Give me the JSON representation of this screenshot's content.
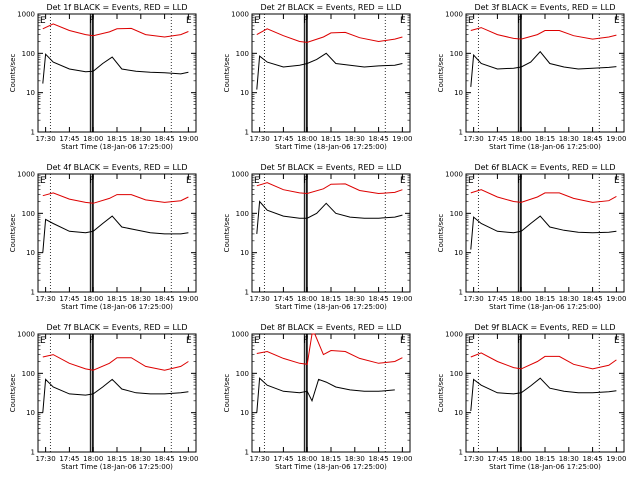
{
  "figure": {
    "xlabel": "Start Time (18-Jan-06 17:25:00)",
    "ylabel": "Counts/sec",
    "x_tick_labels": [
      "17:30",
      "17:45",
      "18:00",
      "18:15",
      "18:30",
      "18:45",
      "19:00"
    ],
    "y_tick_labels": [
      "1",
      "10",
      "100",
      "1000"
    ],
    "markers": [
      "E",
      "F",
      "E"
    ]
  },
  "colors": {
    "events": "#000000",
    "lld": "#dd0000",
    "frame": "#000000"
  },
  "chart_data": [
    {
      "type": "line",
      "title": "Det 1f BLACK = Events, RED = LLD",
      "xlim": [
        17.42,
        19.08
      ],
      "ylim": [
        1,
        1000
      ],
      "log_y": true,
      "series": [
        {
          "name": "LLD",
          "x": [
            17.47,
            17.58,
            17.75,
            17.92,
            18.0,
            18.17,
            18.25,
            18.4,
            18.55,
            18.75,
            18.92,
            19.0
          ],
          "values": [
            420,
            560,
            380,
            300,
            280,
            350,
            420,
            430,
            300,
            260,
            300,
            360
          ]
        },
        {
          "name": "Events",
          "x": [
            17.47,
            17.5,
            17.58,
            17.75,
            17.92,
            18.0,
            18.1,
            18.2,
            18.3,
            18.45,
            18.6,
            18.75,
            18.92,
            19.0
          ],
          "values": [
            17,
            95,
            60,
            40,
            34,
            35,
            55,
            80,
            40,
            35,
            33,
            32,
            30,
            33
          ]
        }
      ]
    },
    {
      "type": "line",
      "title": "Det 2f BLACK = Events, RED = LLD",
      "xlim": [
        17.42,
        19.08
      ],
      "ylim": [
        1,
        1000
      ],
      "log_y": true,
      "series": [
        {
          "name": "LLD",
          "x": [
            17.47,
            17.58,
            17.75,
            17.92,
            18.0,
            18.17,
            18.25,
            18.4,
            18.55,
            18.75,
            18.92,
            19.0
          ],
          "values": [
            300,
            420,
            280,
            200,
            190,
            260,
            330,
            340,
            250,
            200,
            230,
            260
          ]
        },
        {
          "name": "Events",
          "x": [
            17.47,
            17.5,
            17.58,
            17.75,
            17.92,
            18.0,
            18.1,
            18.2,
            18.3,
            18.45,
            18.6,
            18.75,
            18.92,
            19.0
          ],
          "values": [
            12,
            85,
            60,
            45,
            50,
            55,
            70,
            100,
            55,
            50,
            45,
            48,
            50,
            55
          ]
        }
      ]
    },
    {
      "type": "line",
      "title": "Det 3f BLACK = Events, RED = LLD",
      "xlim": [
        17.42,
        19.08
      ],
      "ylim": [
        1,
        1000
      ],
      "log_y": true,
      "series": [
        {
          "name": "LLD",
          "x": [
            17.47,
            17.58,
            17.75,
            17.92,
            18.0,
            18.17,
            18.25,
            18.4,
            18.55,
            18.75,
            18.92,
            19.0
          ],
          "values": [
            380,
            450,
            300,
            240,
            230,
            300,
            380,
            380,
            280,
            230,
            260,
            290
          ]
        },
        {
          "name": "Events",
          "x": [
            17.47,
            17.5,
            17.58,
            17.75,
            17.92,
            18.0,
            18.1,
            18.2,
            18.3,
            18.45,
            18.6,
            18.75,
            18.92,
            19.0
          ],
          "values": [
            14,
            90,
            55,
            40,
            42,
            45,
            60,
            110,
            55,
            45,
            40,
            42,
            44,
            46
          ]
        }
      ]
    },
    {
      "type": "line",
      "title": "Det 4f BLACK = Events, RED = LLD",
      "xlim": [
        17.42,
        19.08
      ],
      "ylim": [
        1,
        1000
      ],
      "log_y": true,
      "series": [
        {
          "name": "LLD",
          "x": [
            17.47,
            17.58,
            17.75,
            17.92,
            18.0,
            18.17,
            18.25,
            18.4,
            18.55,
            18.75,
            18.92,
            19.0
          ],
          "values": [
            280,
            330,
            230,
            190,
            180,
            240,
            300,
            300,
            220,
            190,
            210,
            260
          ]
        },
        {
          "name": "Events",
          "x": [
            17.47,
            17.5,
            17.58,
            17.75,
            17.92,
            18.0,
            18.1,
            18.2,
            18.3,
            18.45,
            18.6,
            18.75,
            18.92,
            19.0
          ],
          "values": [
            10,
            70,
            55,
            35,
            32,
            35,
            55,
            85,
            45,
            38,
            32,
            30,
            30,
            32
          ]
        }
      ]
    },
    {
      "type": "line",
      "title": "Det 5f BLACK = Events, RED = LLD",
      "xlim": [
        17.42,
        19.08
      ],
      "ylim": [
        1,
        1000
      ],
      "log_y": true,
      "series": [
        {
          "name": "LLD",
          "x": [
            17.47,
            17.58,
            17.75,
            17.92,
            18.0,
            18.17,
            18.25,
            18.4,
            18.55,
            18.75,
            18.92,
            19.0
          ],
          "values": [
            500,
            600,
            400,
            330,
            320,
            420,
            550,
            560,
            380,
            320,
            340,
            400
          ]
        },
        {
          "name": "Events",
          "x": [
            17.47,
            17.5,
            17.58,
            17.75,
            17.92,
            18.0,
            18.1,
            18.2,
            18.3,
            18.45,
            18.6,
            18.75,
            18.92,
            19.0
          ],
          "values": [
            30,
            200,
            120,
            85,
            75,
            75,
            100,
            180,
            100,
            80,
            75,
            75,
            80,
            90
          ]
        }
      ]
    },
    {
      "type": "line",
      "title": "Det 6f BLACK = Events, RED = LLD",
      "xlim": [
        17.42,
        19.08
      ],
      "ylim": [
        1,
        1000
      ],
      "log_y": true,
      "series": [
        {
          "name": "LLD",
          "x": [
            17.47,
            17.58,
            17.75,
            17.92,
            18.0,
            18.17,
            18.25,
            18.4,
            18.55,
            18.75,
            18.92,
            19.0
          ],
          "values": [
            330,
            400,
            260,
            200,
            190,
            260,
            330,
            330,
            240,
            190,
            210,
            270
          ]
        },
        {
          "name": "Events",
          "x": [
            17.47,
            17.5,
            17.58,
            17.75,
            17.92,
            18.0,
            18.1,
            18.2,
            18.3,
            18.45,
            18.6,
            18.75,
            18.92,
            19.0
          ],
          "values": [
            12,
            80,
            55,
            35,
            32,
            35,
            55,
            85,
            45,
            37,
            33,
            32,
            33,
            35
          ]
        }
      ]
    },
    {
      "type": "line",
      "title": "Det 7f BLACK = Events, RED = LLD",
      "xlim": [
        17.42,
        19.08
      ],
      "ylim": [
        1,
        1000
      ],
      "log_y": true,
      "series": [
        {
          "name": "LLD",
          "x": [
            17.47,
            17.58,
            17.75,
            17.92,
            18.0,
            18.17,
            18.25,
            18.4,
            18.55,
            18.75,
            18.92,
            19.0
          ],
          "values": [
            260,
            300,
            180,
            130,
            120,
            180,
            250,
            250,
            150,
            120,
            150,
            200
          ]
        },
        {
          "name": "Events",
          "x": [
            17.47,
            17.5,
            17.58,
            17.75,
            17.92,
            18.0,
            18.1,
            18.2,
            18.3,
            18.45,
            18.6,
            18.75,
            18.92,
            19.0
          ],
          "values": [
            10,
            70,
            45,
            30,
            28,
            30,
            45,
            70,
            40,
            32,
            30,
            30,
            32,
            34
          ]
        }
      ]
    },
    {
      "type": "line",
      "title": "Det 8f BLACK = Events, RED = LLD",
      "xlim": [
        17.42,
        19.08
      ],
      "ylim": [
        1,
        1000
      ],
      "log_y": true,
      "series": [
        {
          "name": "LLD",
          "x": [
            17.47,
            17.58,
            17.75,
            17.92,
            18.0,
            18.05,
            18.08,
            18.17,
            18.25,
            18.4,
            18.55,
            18.75,
            18.92,
            19.0
          ],
          "values": [
            320,
            360,
            240,
            180,
            170,
            1000,
            1000,
            300,
            380,
            360,
            240,
            180,
            200,
            250
          ]
        },
        {
          "name": "Events",
          "x": [
            17.47,
            17.5,
            17.58,
            17.75,
            17.92,
            18.0,
            18.05,
            18.12,
            18.2,
            18.3,
            18.45,
            18.6,
            18.75,
            18.92
          ],
          "values": [
            10,
            75,
            50,
            35,
            32,
            35,
            20,
            70,
            60,
            45,
            38,
            35,
            35,
            38
          ]
        }
      ]
    },
    {
      "type": "line",
      "title": "Det 9f BLACK = Events, RED = LLD",
      "xlim": [
        17.42,
        19.08
      ],
      "ylim": [
        1,
        1000
      ],
      "log_y": true,
      "series": [
        {
          "name": "LLD",
          "x": [
            17.47,
            17.58,
            17.75,
            17.92,
            18.0,
            18.17,
            18.25,
            18.4,
            18.55,
            18.75,
            18.92,
            19.0
          ],
          "values": [
            260,
            330,
            200,
            140,
            130,
            200,
            270,
            270,
            170,
            130,
            160,
            220
          ]
        },
        {
          "name": "Events",
          "x": [
            17.47,
            17.5,
            17.58,
            17.75,
            17.92,
            18.0,
            18.1,
            18.2,
            18.3,
            18.45,
            18.6,
            18.75,
            18.92,
            19.0
          ],
          "values": [
            11,
            70,
            50,
            32,
            30,
            32,
            48,
            75,
            42,
            35,
            32,
            32,
            34,
            36
          ]
        }
      ]
    }
  ]
}
